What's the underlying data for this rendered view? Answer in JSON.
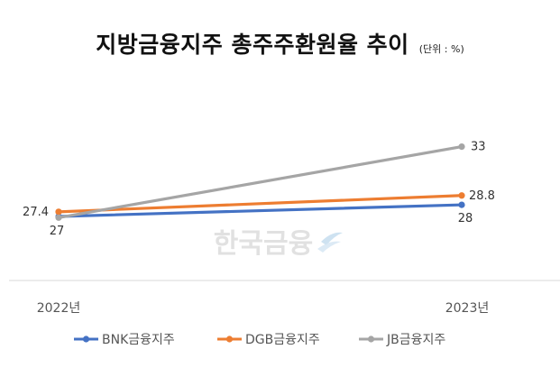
{
  "chart_data": {
    "type": "line",
    "title": "지방금융지주 총주주환원율 추이",
    "unit": "(단위 : %)",
    "categories": [
      "2022년",
      "2023년"
    ],
    "series": [
      {
        "name": "BNK금융지주",
        "color": "#4472C4",
        "values": [
          27,
          28
        ],
        "labels": [
          "27",
          "28"
        ]
      },
      {
        "name": "DGB금융지주",
        "color": "#ED7D31",
        "values": [
          27.4,
          28.8
        ],
        "labels": [
          "27.4",
          "28.8"
        ]
      },
      {
        "name": "JB금융지주",
        "color": "#A5A5A5",
        "values": [
          26.9,
          33
        ],
        "labels": [
          "",
          "33"
        ]
      }
    ],
    "legend_position": "bottom",
    "grid": false
  },
  "watermark": "한국금융"
}
